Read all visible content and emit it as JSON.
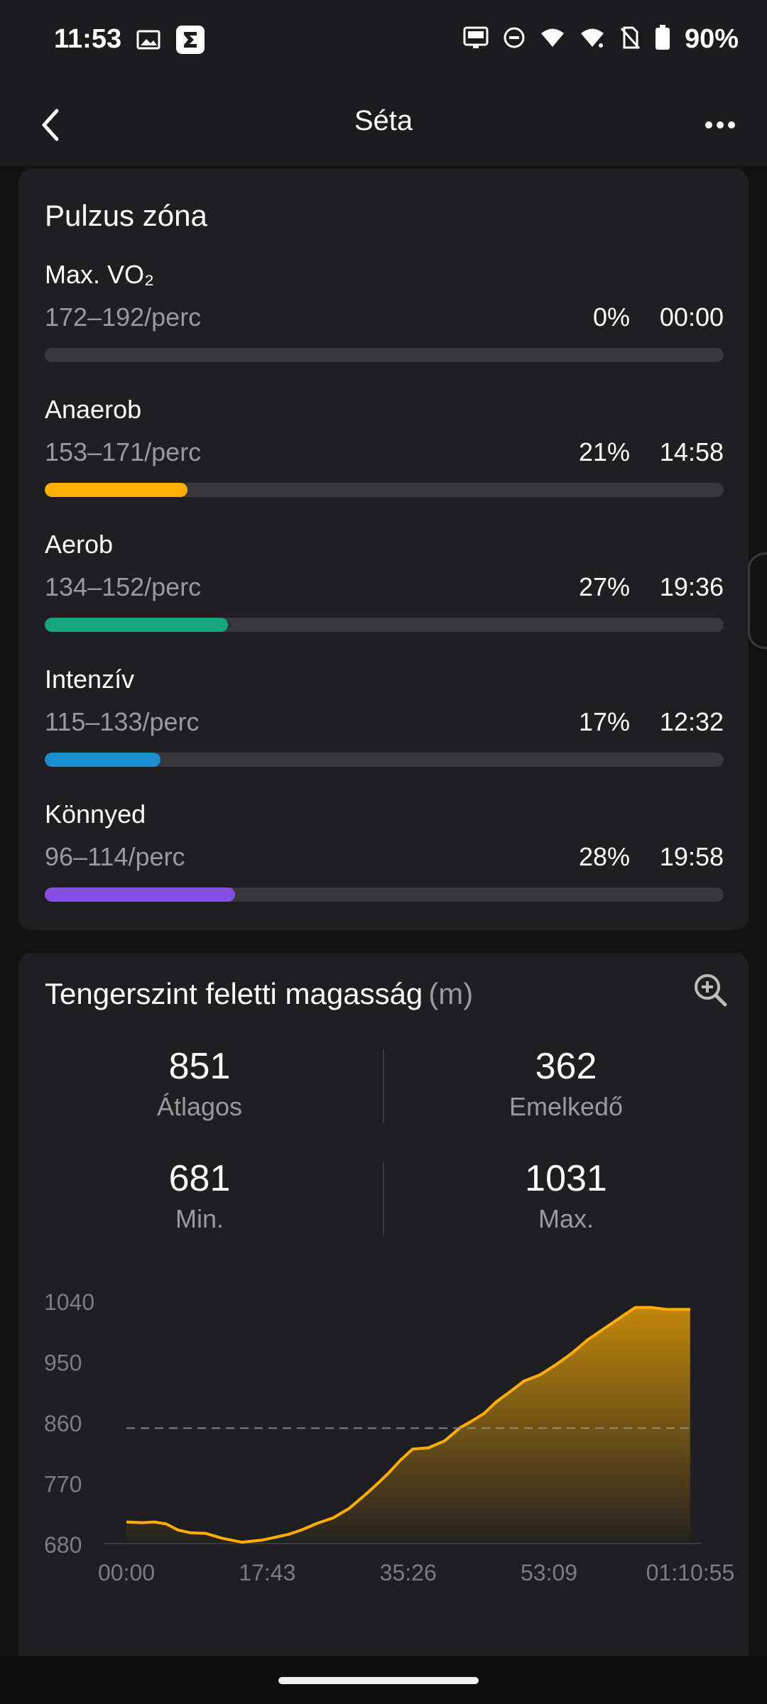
{
  "status_bar": {
    "time": "11:53",
    "battery_text": "90%",
    "icons": [
      "gallery-icon",
      "sigma-app-icon",
      "auto-hz-icon",
      "do-not-disturb-icon",
      "wifi-icon",
      "wifi-icon",
      "no-sim-icon",
      "battery-icon"
    ]
  },
  "app_bar": {
    "title": "Séta",
    "back_icon": "chevron-left-icon",
    "more_icon": "more-horizontal-icon"
  },
  "heart_rate": {
    "title": "Pulzus zóna",
    "zones": [
      {
        "name": "Max. VO₂",
        "range": "172–192/perc",
        "percent": "0%",
        "time": "00:00",
        "fraction": 0.0,
        "color": "#6b6b6e"
      },
      {
        "name": "Anaerob",
        "range": "153–171/perc",
        "percent": "21%",
        "time": "14:58",
        "fraction": 0.21,
        "color": "#ffae00"
      },
      {
        "name": "Aerob",
        "range": "134–152/perc",
        "percent": "27%",
        "time": "19:36",
        "fraction": 0.27,
        "color": "#14a77e"
      },
      {
        "name": "Intenzív",
        "range": "115–133/perc",
        "percent": "17%",
        "time": "12:32",
        "fraction": 0.17,
        "color": "#1a8fd0"
      },
      {
        "name": "Könnyed",
        "range": "96–114/perc",
        "percent": "28%",
        "time": "19:58",
        "fraction": 0.28,
        "color": "#8650e6"
      }
    ]
  },
  "altitude": {
    "title": "Tengerszint feletti magasság",
    "unit": "(m)",
    "zoom_icon": "zoom-in-icon",
    "stats": {
      "average": {
        "value": "851",
        "label": "Átlagos"
      },
      "ascent": {
        "value": "362",
        "label": "Emelkedő"
      },
      "min": {
        "value": "681",
        "label": "Min."
      },
      "max": {
        "value": "1031",
        "label": "Max."
      }
    }
  },
  "chart_data": {
    "type": "area",
    "y_ticks": [
      "1040",
      "950",
      "860",
      "770",
      "680"
    ],
    "x_ticks": [
      "00:00",
      "17:43",
      "35:26",
      "53:09",
      "01:10:55"
    ],
    "ylim": [
      680,
      1040
    ],
    "xlim_minutes": [
      0,
      70.92
    ],
    "reference_line": 851,
    "color": "#ffae00",
    "x_minutes": [
      0,
      2,
      3.5,
      5,
      6.5,
      8,
      10,
      12,
      14.5,
      17,
      19,
      20.5,
      22,
      24,
      26,
      28,
      30,
      31.5,
      33,
      34.5,
      36,
      38,
      40,
      42,
      43.5,
      45,
      46.5,
      48,
      50,
      52,
      54,
      56,
      58,
      60,
      62,
      64,
      66,
      68,
      70.9
    ],
    "y_values": [
      712,
      711,
      712,
      709,
      700,
      696,
      695,
      688,
      682,
      685,
      690,
      694,
      700,
      710,
      718,
      732,
      752,
      768,
      785,
      804,
      820,
      822,
      832,
      852,
      862,
      873,
      890,
      903,
      921,
      930,
      945,
      962,
      982,
      998,
      1014,
      1030,
      1030,
      1027,
      1027
    ]
  },
  "nav": {
    "home_handle": "home-indicator"
  }
}
